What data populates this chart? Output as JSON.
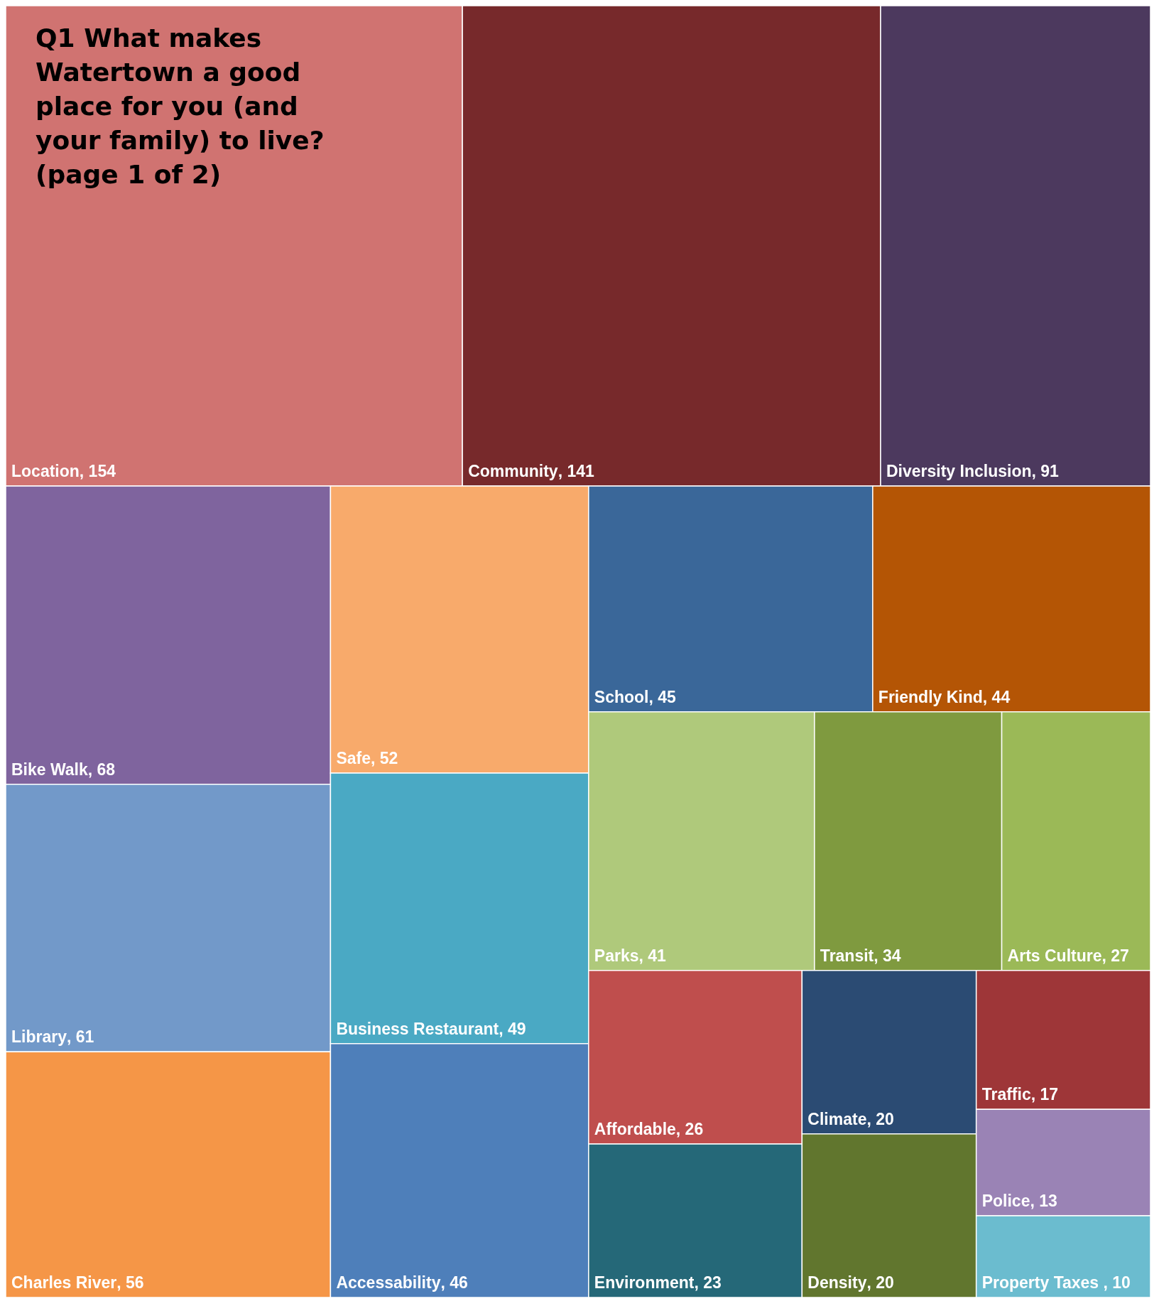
{
  "chart_data": {
    "type": "other",
    "title": "Q1 What makes Watertown a good place for you (and your family) to live? (page 1 of 2)",
    "categories": [
      "Location",
      "Community",
      "Diversity Inclusion",
      "Bike Walk",
      "Library",
      "Charles River",
      "Safe",
      "Business Restaurant",
      "Accessability",
      "School",
      "Friendly Kind",
      "Parks",
      "Transit",
      "Arts Culture",
      "Affordable",
      "Environment",
      "Climate",
      "Density",
      "Traffic",
      "Police",
      "Property Taxes "
    ],
    "values": [
      154,
      141,
      91,
      68,
      61,
      56,
      52,
      49,
      46,
      45,
      44,
      41,
      34,
      27,
      26,
      23,
      20,
      20,
      17,
      13,
      10
    ],
    "colors": [
      "#d07371",
      "#77292b",
      "#4c395e",
      "#7f649e",
      "#7299c9",
      "#f59647",
      "#f8aa6b",
      "#4aa9c4",
      "#4e7fba",
      "#3a6799",
      "#b45505",
      "#afc97b",
      "#7f9a3f",
      "#9bb957",
      "#bf4e4d",
      "#256878",
      "#2b4b73",
      "#61762e",
      "#9e3638",
      "#9a83b5",
      "#6bbccf"
    ],
    "value_labels": [
      ", 154",
      ", 141",
      ", 91",
      ", 68",
      ", 61",
      ", 56",
      ", 52",
      ", 49",
      ", 46",
      ", 45",
      ", 44",
      ", 41",
      ", 34",
      ", 27",
      ", 26",
      ", 23",
      ", 20",
      ", 20",
      ", 17",
      ", 13",
      ", 10"
    ]
  }
}
